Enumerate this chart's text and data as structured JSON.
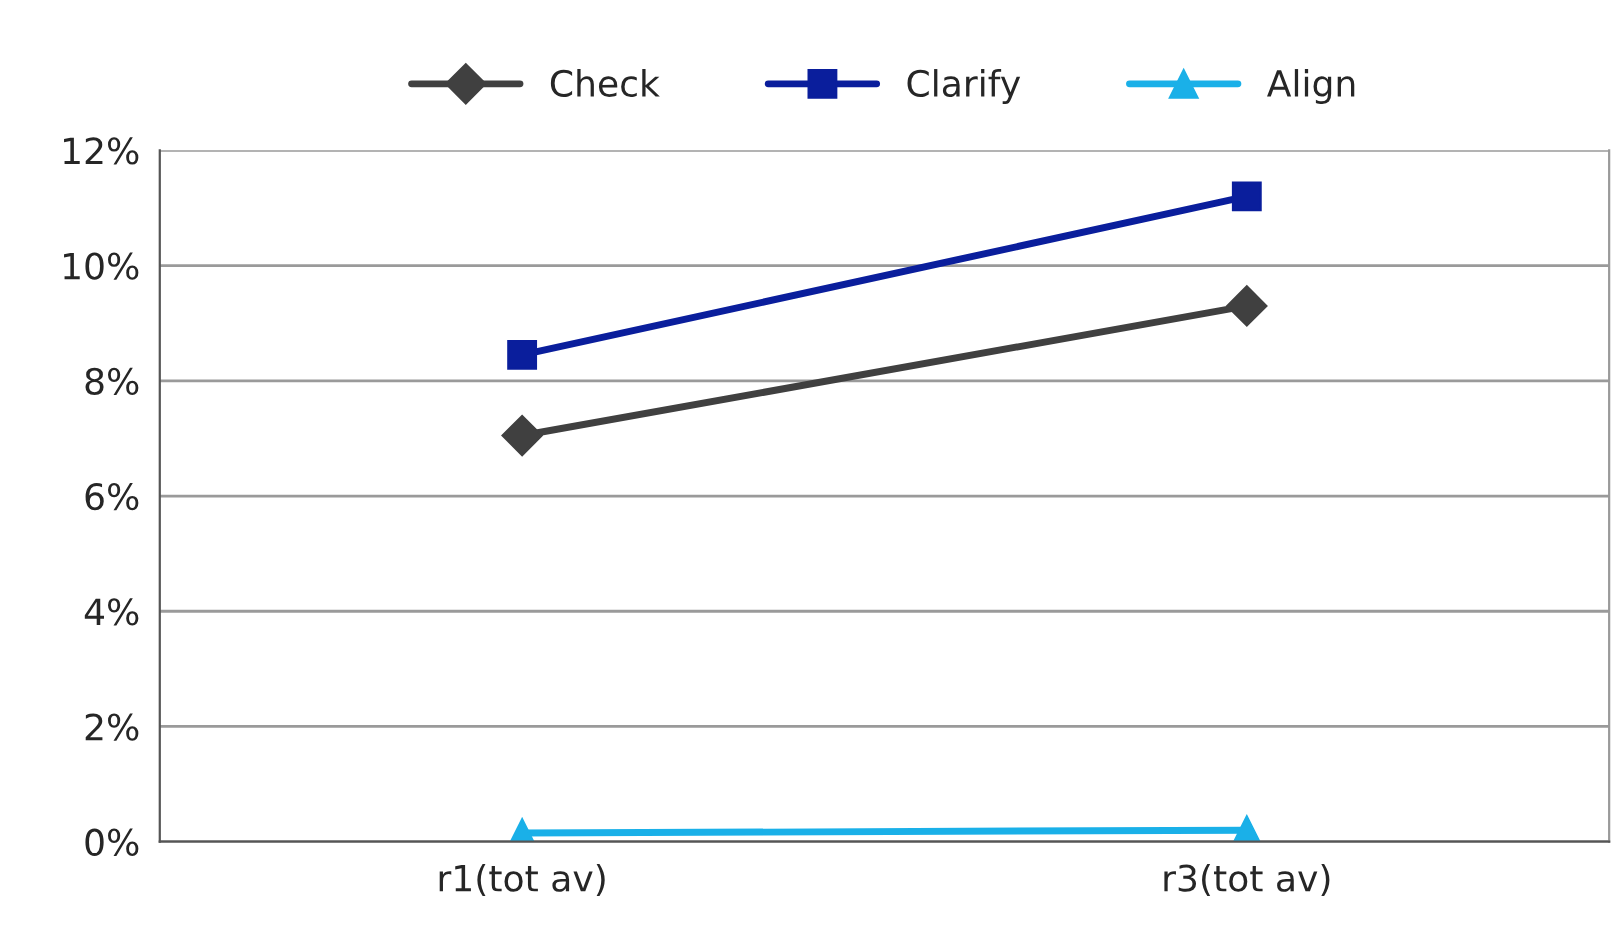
{
  "chart_data": {
    "type": "line",
    "categories": [
      "r1(tot av)",
      "r3(tot av)"
    ],
    "series": [
      {
        "name": "Check",
        "color": "#404040",
        "marker": "diamond",
        "values": [
          7.05,
          9.3
        ]
      },
      {
        "name": "Clarify",
        "color": "#0a1e9c",
        "marker": "square",
        "values": [
          8.45,
          11.2
        ]
      },
      {
        "name": "Align",
        "color": "#1ab0e8",
        "marker": "triangle",
        "values": [
          0.15,
          0.2
        ]
      }
    ],
    "ylim": [
      0,
      12
    ],
    "yticks": [
      {
        "value": 0,
        "label": "0%"
      },
      {
        "value": 2,
        "label": "2%"
      },
      {
        "value": 4,
        "label": "4%"
      },
      {
        "value": 6,
        "label": "6%"
      },
      {
        "value": 8,
        "label": "8%"
      },
      {
        "value": 10,
        "label": "10%"
      },
      {
        "value": 12,
        "label": "12%"
      }
    ],
    "grid": "y",
    "legend": "top",
    "line_style": "solid"
  }
}
